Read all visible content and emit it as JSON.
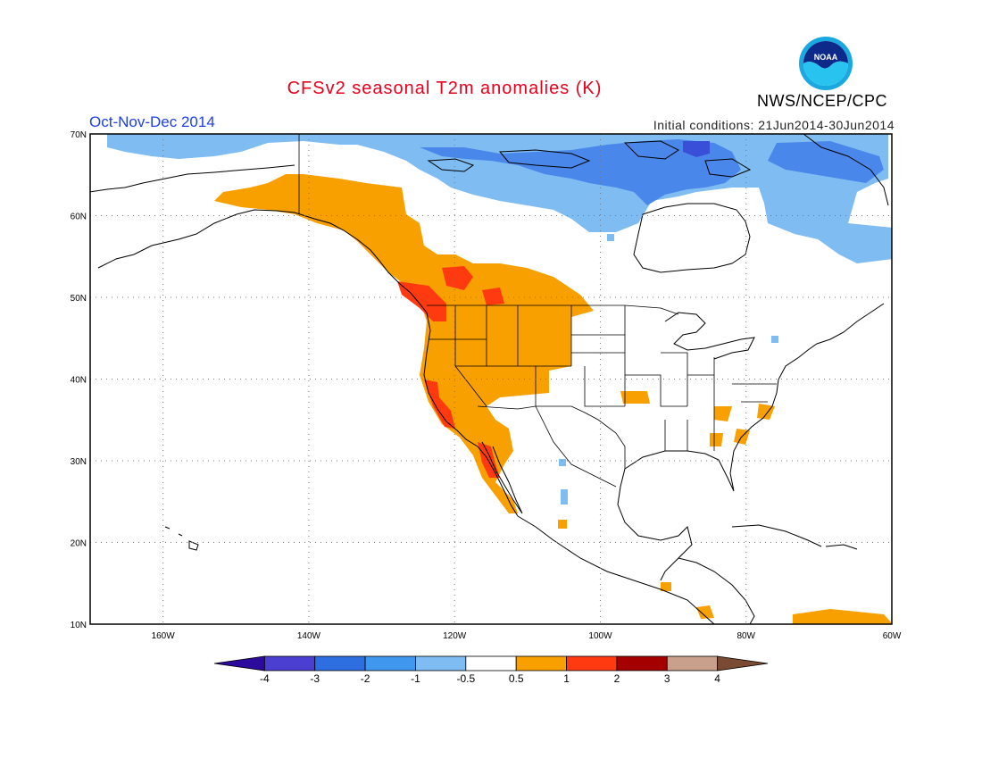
{
  "header": {
    "title": "CFSv2 seasonal T2m anomalies (K)",
    "season": "Oct-Nov-Dec 2014",
    "initial_conditions": "Initial conditions: 21Jun2014-30Jun2014",
    "agency": "NWS/NCEP/CPC",
    "logo_text": "NOAA"
  },
  "map": {
    "projection": "lat-lon",
    "lon_range": [
      -170,
      -60
    ],
    "lat_range": [
      10,
      70
    ],
    "lat_labels": [
      "70N",
      "60N",
      "50N",
      "40N",
      "30N",
      "20N",
      "10N"
    ],
    "lon_labels": [
      "160W",
      "140W",
      "120W",
      "100W",
      "80W",
      "60W"
    ],
    "gridlines": true
  },
  "legend": {
    "labels": [
      "-4",
      "-3",
      "-2",
      "-1",
      "-0.5",
      "0.5",
      "1",
      "2",
      "3",
      "4"
    ],
    "colors": [
      "#2b0a9c",
      "#4a3fd0",
      "#2d6fe0",
      "#3f98ee",
      "#7fbcf2",
      "#ffffff",
      "#f7a000",
      "#ff3a10",
      "#a50000",
      "#c9a08c",
      "#7a4a32"
    ]
  },
  "anomaly_regions": [
    {
      "level": "cold2",
      "color": "#4a87ea"
    },
    {
      "level": "cold1",
      "color": "#7fbcf2"
    },
    {
      "level": "cold3",
      "color": "#3a4fd8"
    },
    {
      "level": "warm1",
      "color": "#f7a000"
    },
    {
      "level": "warm2",
      "color": "#ff3a10"
    }
  ]
}
